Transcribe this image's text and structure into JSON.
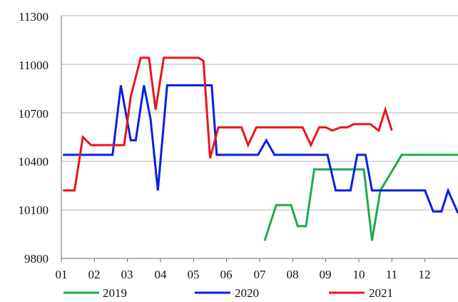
{
  "chart_data": {
    "type": "line",
    "title": "",
    "xlabel": "",
    "ylabel": "",
    "x_tick_labels": [
      "01",
      "02",
      "03",
      "04",
      "05",
      "06",
      "07",
      "08",
      "09",
      "10",
      "11",
      "12"
    ],
    "y_tick_labels": [
      "11300",
      "11000",
      "10700",
      "10400",
      "10100",
      "9800"
    ],
    "y_ticks": [
      11300,
      11000,
      10700,
      10400,
      10100,
      9800
    ],
    "ylim": [
      9800,
      11300
    ],
    "xlim": [
      1,
      13
    ],
    "grid": "horizontal",
    "legend_position": "bottom",
    "series": [
      {
        "name": "2019",
        "color": "#1faa4e",
        "points": [
          [
            7.15,
            9910
          ],
          [
            7.5,
            10130
          ],
          [
            7.95,
            10130
          ],
          [
            8.15,
            10000
          ],
          [
            8.4,
            10000
          ],
          [
            8.65,
            10350
          ],
          [
            8.85,
            10350
          ],
          [
            9.3,
            10350
          ],
          [
            9.75,
            10350
          ],
          [
            10.15,
            10350
          ],
          [
            10.4,
            9910
          ],
          [
            10.65,
            10220
          ],
          [
            11.3,
            10440
          ],
          [
            12.0,
            10440
          ],
          [
            13.0,
            10440
          ]
        ]
      },
      {
        "name": "2020",
        "color": "#0b1fe0",
        "points": [
          [
            1.05,
            10440
          ],
          [
            1.9,
            10440
          ],
          [
            2.55,
            10440
          ],
          [
            2.8,
            10870
          ],
          [
            3.1,
            10530
          ],
          [
            3.25,
            10530
          ],
          [
            3.5,
            10870
          ],
          [
            3.7,
            10660
          ],
          [
            3.92,
            10220
          ],
          [
            4.2,
            10870
          ],
          [
            4.6,
            10870
          ],
          [
            5.0,
            10870
          ],
          [
            5.55,
            10870
          ],
          [
            5.7,
            10440
          ],
          [
            6.1,
            10440
          ],
          [
            6.5,
            10440
          ],
          [
            6.95,
            10440
          ],
          [
            7.2,
            10530
          ],
          [
            7.45,
            10440
          ],
          [
            7.9,
            10440
          ],
          [
            8.5,
            10440
          ],
          [
            9.05,
            10440
          ],
          [
            9.3,
            10220
          ],
          [
            9.75,
            10220
          ],
          [
            9.95,
            10440
          ],
          [
            10.2,
            10440
          ],
          [
            10.4,
            10220
          ],
          [
            11.3,
            10220
          ],
          [
            12.0,
            10220
          ],
          [
            12.25,
            10090
          ],
          [
            12.5,
            10090
          ],
          [
            12.7,
            10220
          ],
          [
            13.0,
            10080
          ]
        ]
      },
      {
        "name": "2021",
        "color": "#e8161c",
        "points": [
          [
            1.05,
            10220
          ],
          [
            1.4,
            10220
          ],
          [
            1.65,
            10550
          ],
          [
            1.9,
            10500
          ],
          [
            2.4,
            10500
          ],
          [
            2.9,
            10500
          ],
          [
            3.1,
            10800
          ],
          [
            3.4,
            11040
          ],
          [
            3.65,
            11040
          ],
          [
            3.85,
            10720
          ],
          [
            4.1,
            11040
          ],
          [
            4.5,
            11040
          ],
          [
            5.0,
            11040
          ],
          [
            5.15,
            11040
          ],
          [
            5.3,
            11020
          ],
          [
            5.5,
            10420
          ],
          [
            5.75,
            10610
          ],
          [
            6.2,
            10610
          ],
          [
            6.45,
            10610
          ],
          [
            6.65,
            10500
          ],
          [
            6.9,
            10610
          ],
          [
            7.2,
            10610
          ],
          [
            7.6,
            10610
          ],
          [
            8.0,
            10610
          ],
          [
            8.3,
            10610
          ],
          [
            8.55,
            10500
          ],
          [
            8.8,
            10610
          ],
          [
            9.0,
            10610
          ],
          [
            9.2,
            10590
          ],
          [
            9.45,
            10610
          ],
          [
            9.65,
            10610
          ],
          [
            9.85,
            10630
          ],
          [
            10.2,
            10630
          ],
          [
            10.35,
            10630
          ],
          [
            10.6,
            10590
          ],
          [
            10.8,
            10720
          ],
          [
            11.0,
            10590
          ]
        ]
      }
    ]
  }
}
